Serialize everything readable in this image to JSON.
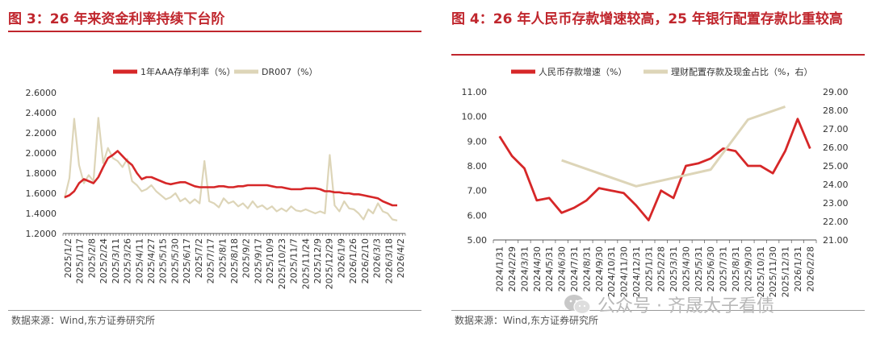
{
  "left": {
    "title": "图 3：26 年来资金利率持续下台阶",
    "source": "数据来源：Wind,东方证券研究所",
    "chart_data": {
      "type": "line",
      "title": "图 3：26 年来资金利率持续下台阶",
      "xlabel": "",
      "ylabel": "",
      "ylim": [
        1.2,
        2.6
      ],
      "yticks": [
        "2.6000",
        "2.4000",
        "2.2000",
        "2.0000",
        "1.8000",
        "1.6000",
        "1.4000",
        "1.2000"
      ],
      "x_tick_labels": [
        "2025/1/2",
        "2025/1/17",
        "2025/2/8",
        "2025/2/24",
        "2025/3/11",
        "2025/3/26",
        "2025/4/11",
        "2025/4/27",
        "2025/5/15",
        "2025/5/30",
        "2025/6/17",
        "2025/7/2",
        "2025/7/17",
        "2025/8/1",
        "2025/8/18",
        "2025/9/2",
        "2025/9/17",
        "2025/10/9",
        "2025/10/23",
        "2025/11/7",
        "2025/11/24",
        "2025/12/9",
        "2025/12/29",
        "2026/1/9",
        "2026/1/26",
        "2026/2/10",
        "2026/3/3",
        "2026/3/18",
        "2026/4/2"
      ],
      "legend_position": "top",
      "series": [
        {
          "name": "1年AAA存单利率（%）",
          "color": "#d62728",
          "values": [
            1.56,
            1.58,
            1.62,
            1.7,
            1.74,
            1.72,
            1.7,
            1.76,
            1.86,
            1.95,
            1.98,
            2.02,
            1.97,
            1.92,
            1.88,
            1.8,
            1.74,
            1.76,
            1.76,
            1.74,
            1.72,
            1.7,
            1.69,
            1.7,
            1.71,
            1.71,
            1.69,
            1.67,
            1.66,
            1.66,
            1.66,
            1.66,
            1.67,
            1.67,
            1.66,
            1.66,
            1.67,
            1.67,
            1.68,
            1.68,
            1.68,
            1.68,
            1.68,
            1.67,
            1.66,
            1.66,
            1.65,
            1.64,
            1.64,
            1.64,
            1.65,
            1.65,
            1.65,
            1.64,
            1.62,
            1.62,
            1.61,
            1.61,
            1.6,
            1.6,
            1.59,
            1.59,
            1.58,
            1.57,
            1.56,
            1.55,
            1.52,
            1.5,
            1.48,
            1.48
          ]
        },
        {
          "name": "DR007（%）",
          "color": "#ddd5b8",
          "values": [
            1.55,
            1.75,
            2.34,
            1.88,
            1.7,
            1.78,
            1.72,
            2.35,
            1.9,
            2.05,
            1.95,
            1.92,
            1.86,
            1.94,
            1.72,
            1.68,
            1.62,
            1.64,
            1.68,
            1.62,
            1.58,
            1.54,
            1.56,
            1.6,
            1.52,
            1.55,
            1.5,
            1.54,
            1.5,
            1.92,
            1.52,
            1.5,
            1.46,
            1.55,
            1.5,
            1.52,
            1.47,
            1.5,
            1.45,
            1.52,
            1.46,
            1.48,
            1.44,
            1.47,
            1.42,
            1.45,
            1.42,
            1.47,
            1.43,
            1.42,
            1.44,
            1.42,
            1.4,
            1.42,
            1.4,
            1.98,
            1.48,
            1.42,
            1.52,
            1.45,
            1.44,
            1.4,
            1.34,
            1.44,
            1.4,
            1.5,
            1.42,
            1.4,
            1.34,
            1.33
          ]
        }
      ]
    }
  },
  "right": {
    "title": "图 4：26 年人民币存款增速较高，25 年银行配置存款比重较高",
    "source": "数据来源：Wind,东方证券研究所",
    "chart_data": {
      "type": "line",
      "title": "图 4：26 年人民币存款增速较高，25 年银行配置存款比重较高",
      "xlabel": "",
      "ylabel": "",
      "ylim": [
        5,
        11
      ],
      "y2lim": [
        21,
        29
      ],
      "yticks": [
        "11.00",
        "10.00",
        "9.00",
        "8.00",
        "7.00",
        "6.00",
        "5.00"
      ],
      "y2ticks": [
        "29.00",
        "28.00",
        "27.00",
        "26.00",
        "25.00",
        "24.00",
        "23.00",
        "22.00",
        "21.00"
      ],
      "categories": [
        "2024/1/31",
        "2024/2/29",
        "2024/3/31",
        "2024/4/30",
        "2024/5/31",
        "2024/6/30",
        "2024/7/31",
        "2024/8/31",
        "2024/9/30",
        "2024/10/31",
        "2024/11/30",
        "2024/12/31",
        "2025/1/31",
        "2025/2/28",
        "2025/3/31",
        "2025/4/30",
        "2025/5/31",
        "2025/6/30",
        "2025/7/31",
        "2025/8/31",
        "2025/9/30",
        "2025/10/31",
        "2025/11/30",
        "2025/12/31",
        "2026/1/31",
        "2026/2/28"
      ],
      "legend_position": "top",
      "series": [
        {
          "name": "人民币存款增速（%）",
          "color": "#d62728",
          "axis": "left",
          "values": [
            9.2,
            8.4,
            7.9,
            6.6,
            6.7,
            6.1,
            6.3,
            6.6,
            7.1,
            7.0,
            6.9,
            6.4,
            5.8,
            7.0,
            6.7,
            8.0,
            8.1,
            8.3,
            8.7,
            8.6,
            8.0,
            8.0,
            7.7,
            8.6,
            9.9,
            8.7
          ]
        },
        {
          "name": "理财配置存款及现金占比（%，右）",
          "color": "#ddd5b8",
          "axis": "right",
          "values": [
            null,
            null,
            null,
            null,
            null,
            25.3,
            null,
            null,
            null,
            null,
            null,
            23.9,
            null,
            null,
            null,
            null,
            null,
            24.8,
            null,
            null,
            27.5,
            null,
            null,
            28.2,
            null,
            null
          ]
        }
      ]
    }
  },
  "watermark": {
    "text": "公众号 · 齐晟太子看债",
    "icon": "wechat-icon"
  }
}
